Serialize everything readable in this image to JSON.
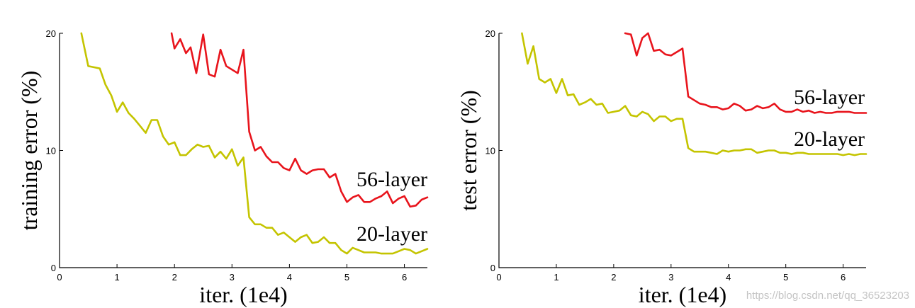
{
  "watermark": "https://blog.csdn.net/qq_36523203",
  "chart_data": [
    {
      "type": "line",
      "xlabel": "iter. (1e4)",
      "ylabel": "training error (%)",
      "xlim": [
        0,
        6.4
      ],
      "ylim": [
        0,
        20
      ],
      "xticks": [
        0,
        1,
        2,
        3,
        4,
        5,
        6
      ],
      "yticks": [
        0,
        10,
        20
      ],
      "grid": false,
      "series": [
        {
          "name": "56-layer",
          "color": "#e8141c",
          "x": [
            1.95,
            2.0,
            2.1,
            2.2,
            2.28,
            2.38,
            2.5,
            2.6,
            2.7,
            2.8,
            2.9,
            3.0,
            3.1,
            3.2,
            3.3,
            3.4,
            3.5,
            3.6,
            3.7,
            3.8,
            3.9,
            4.0,
            4.1,
            4.2,
            4.3,
            4.4,
            4.5,
            4.6,
            4.7,
            4.8,
            4.9,
            5.0,
            5.1,
            5.2,
            5.3,
            5.4,
            5.5,
            5.6,
            5.7,
            5.8,
            5.9,
            6.0,
            6.1,
            6.2,
            6.3,
            6.4
          ],
          "y": [
            20.0,
            18.7,
            19.5,
            18.3,
            18.8,
            16.6,
            19.9,
            16.5,
            16.3,
            18.6,
            17.2,
            16.9,
            16.6,
            18.6,
            11.6,
            10.0,
            10.3,
            9.5,
            9.0,
            9.0,
            8.5,
            8.3,
            9.3,
            8.3,
            8.0,
            8.3,
            8.4,
            8.4,
            7.7,
            8.0,
            6.5,
            5.6,
            6.0,
            6.2,
            5.6,
            5.6,
            5.9,
            6.1,
            6.5,
            5.5,
            5.9,
            6.1,
            5.2,
            5.3,
            5.8,
            6.0
          ]
        },
        {
          "name": "20-layer",
          "color": "#c4c400",
          "x": [
            0.38,
            0.5,
            0.6,
            0.7,
            0.8,
            0.9,
            1.0,
            1.1,
            1.2,
            1.3,
            1.4,
            1.5,
            1.6,
            1.7,
            1.8,
            1.9,
            2.0,
            2.1,
            2.2,
            2.3,
            2.4,
            2.5,
            2.6,
            2.7,
            2.8,
            2.9,
            3.0,
            3.1,
            3.2,
            3.3,
            3.4,
            3.5,
            3.6,
            3.7,
            3.8,
            3.9,
            4.0,
            4.1,
            4.2,
            4.3,
            4.4,
            4.5,
            4.6,
            4.7,
            4.8,
            4.9,
            5.0,
            5.1,
            5.2,
            5.3,
            5.4,
            5.5,
            5.6,
            5.7,
            5.8,
            5.9,
            6.0,
            6.1,
            6.2,
            6.3,
            6.4
          ],
          "y": [
            20.0,
            17.2,
            17.1,
            17.0,
            15.6,
            14.7,
            13.3,
            14.1,
            13.2,
            12.7,
            12.1,
            11.5,
            12.6,
            12.6,
            11.2,
            10.5,
            10.7,
            9.6,
            9.6,
            10.1,
            10.5,
            10.3,
            10.4,
            9.4,
            9.9,
            9.3,
            10.1,
            8.7,
            9.4,
            4.3,
            3.7,
            3.7,
            3.4,
            3.4,
            2.8,
            3.0,
            2.6,
            2.2,
            2.6,
            2.8,
            2.1,
            2.2,
            2.6,
            2.1,
            2.1,
            1.5,
            1.2,
            1.7,
            1.5,
            1.3,
            1.3,
            1.3,
            1.2,
            1.2,
            1.2,
            1.4,
            1.6,
            1.5,
            1.2,
            1.4,
            1.6
          ]
        }
      ]
    },
    {
      "type": "line",
      "xlabel": "iter. (1e4)",
      "ylabel": "test error (%)",
      "xlim": [
        0,
        6.4
      ],
      "ylim": [
        0,
        20
      ],
      "xticks": [
        0,
        1,
        2,
        3,
        4,
        5,
        6
      ],
      "yticks": [
        0,
        10,
        20
      ],
      "grid": false,
      "series": [
        {
          "name": "56-layer",
          "color": "#e8141c",
          "x": [
            2.2,
            2.3,
            2.4,
            2.5,
            2.6,
            2.7,
            2.8,
            2.9,
            3.0,
            3.1,
            3.2,
            3.3,
            3.4,
            3.5,
            3.6,
            3.7,
            3.8,
            3.9,
            4.0,
            4.1,
            4.2,
            4.3,
            4.4,
            4.5,
            4.6,
            4.7,
            4.8,
            4.9,
            5.0,
            5.1,
            5.2,
            5.3,
            5.4,
            5.5,
            5.6,
            5.7,
            5.8,
            5.9,
            6.0,
            6.1,
            6.2,
            6.3,
            6.4
          ],
          "y": [
            20.0,
            19.9,
            18.1,
            19.6,
            20.0,
            18.5,
            18.6,
            18.2,
            18.1,
            18.4,
            18.7,
            14.6,
            14.3,
            14.0,
            13.9,
            13.7,
            13.7,
            13.5,
            13.6,
            14.0,
            13.8,
            13.4,
            13.5,
            13.8,
            13.6,
            13.7,
            14.0,
            13.5,
            13.3,
            13.3,
            13.5,
            13.3,
            13.4,
            13.2,
            13.3,
            13.2,
            13.2,
            13.3,
            13.3,
            13.3,
            13.2,
            13.2,
            13.2
          ]
        },
        {
          "name": "20-layer",
          "color": "#c4c400",
          "x": [
            0.4,
            0.5,
            0.6,
            0.7,
            0.8,
            0.9,
            1.0,
            1.1,
            1.2,
            1.3,
            1.4,
            1.5,
            1.6,
            1.7,
            1.8,
            1.9,
            2.0,
            2.1,
            2.2,
            2.3,
            2.4,
            2.5,
            2.6,
            2.7,
            2.8,
            2.9,
            3.0,
            3.1,
            3.2,
            3.3,
            3.4,
            3.5,
            3.6,
            3.7,
            3.8,
            3.9,
            4.0,
            4.1,
            4.2,
            4.3,
            4.4,
            4.5,
            4.6,
            4.7,
            4.8,
            4.9,
            5.0,
            5.1,
            5.2,
            5.3,
            5.4,
            5.5,
            5.6,
            5.7,
            5.8,
            5.9,
            6.0,
            6.1,
            6.2,
            6.3,
            6.4
          ],
          "y": [
            20.0,
            17.4,
            18.9,
            16.1,
            15.8,
            16.1,
            14.9,
            16.1,
            14.7,
            14.8,
            13.9,
            14.1,
            14.4,
            13.9,
            14.0,
            13.2,
            13.3,
            13.4,
            13.8,
            13.0,
            12.9,
            13.3,
            13.1,
            12.5,
            12.9,
            12.9,
            12.5,
            12.7,
            12.7,
            10.2,
            9.9,
            9.9,
            9.9,
            9.8,
            9.7,
            10.0,
            9.9,
            10.0,
            10.0,
            10.1,
            10.1,
            9.8,
            9.9,
            10.0,
            10.0,
            9.8,
            9.8,
            9.7,
            9.8,
            9.8,
            9.7,
            9.7,
            9.7,
            9.7,
            9.7,
            9.7,
            9.6,
            9.7,
            9.6,
            9.7,
            9.7
          ]
        }
      ]
    }
  ]
}
